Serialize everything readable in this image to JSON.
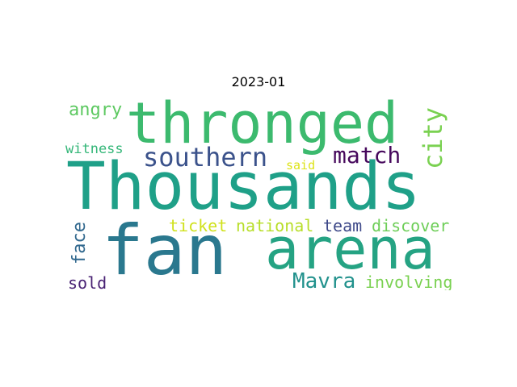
{
  "title": "2023-01",
  "words": [
    {
      "text": "Thousands",
      "color": "#1fa088"
    },
    {
      "text": "fan",
      "color": "#2a788e"
    },
    {
      "text": "arena",
      "color": "#25a383"
    },
    {
      "text": "thronged",
      "color": "#3cba6e"
    },
    {
      "text": "southern",
      "color": "#3b528b"
    },
    {
      "text": "city",
      "color": "#7ad151"
    },
    {
      "text": "match",
      "color": "#46085c"
    },
    {
      "text": "angry",
      "color": "#5ec962"
    },
    {
      "text": "witness",
      "color": "#35b779"
    },
    {
      "text": "said",
      "color": "#dde318"
    },
    {
      "text": "ticket",
      "color": "#d0e11c"
    },
    {
      "text": "national",
      "color": "#b8de29"
    },
    {
      "text": "team",
      "color": "#3e4989"
    },
    {
      "text": "discover",
      "color": "#6ece58"
    },
    {
      "text": "face",
      "color": "#31688e"
    },
    {
      "text": "sold",
      "color": "#482173"
    },
    {
      "text": "Mavra",
      "color": "#21918c"
    },
    {
      "text": "involving",
      "color": "#7ad151"
    }
  ]
}
